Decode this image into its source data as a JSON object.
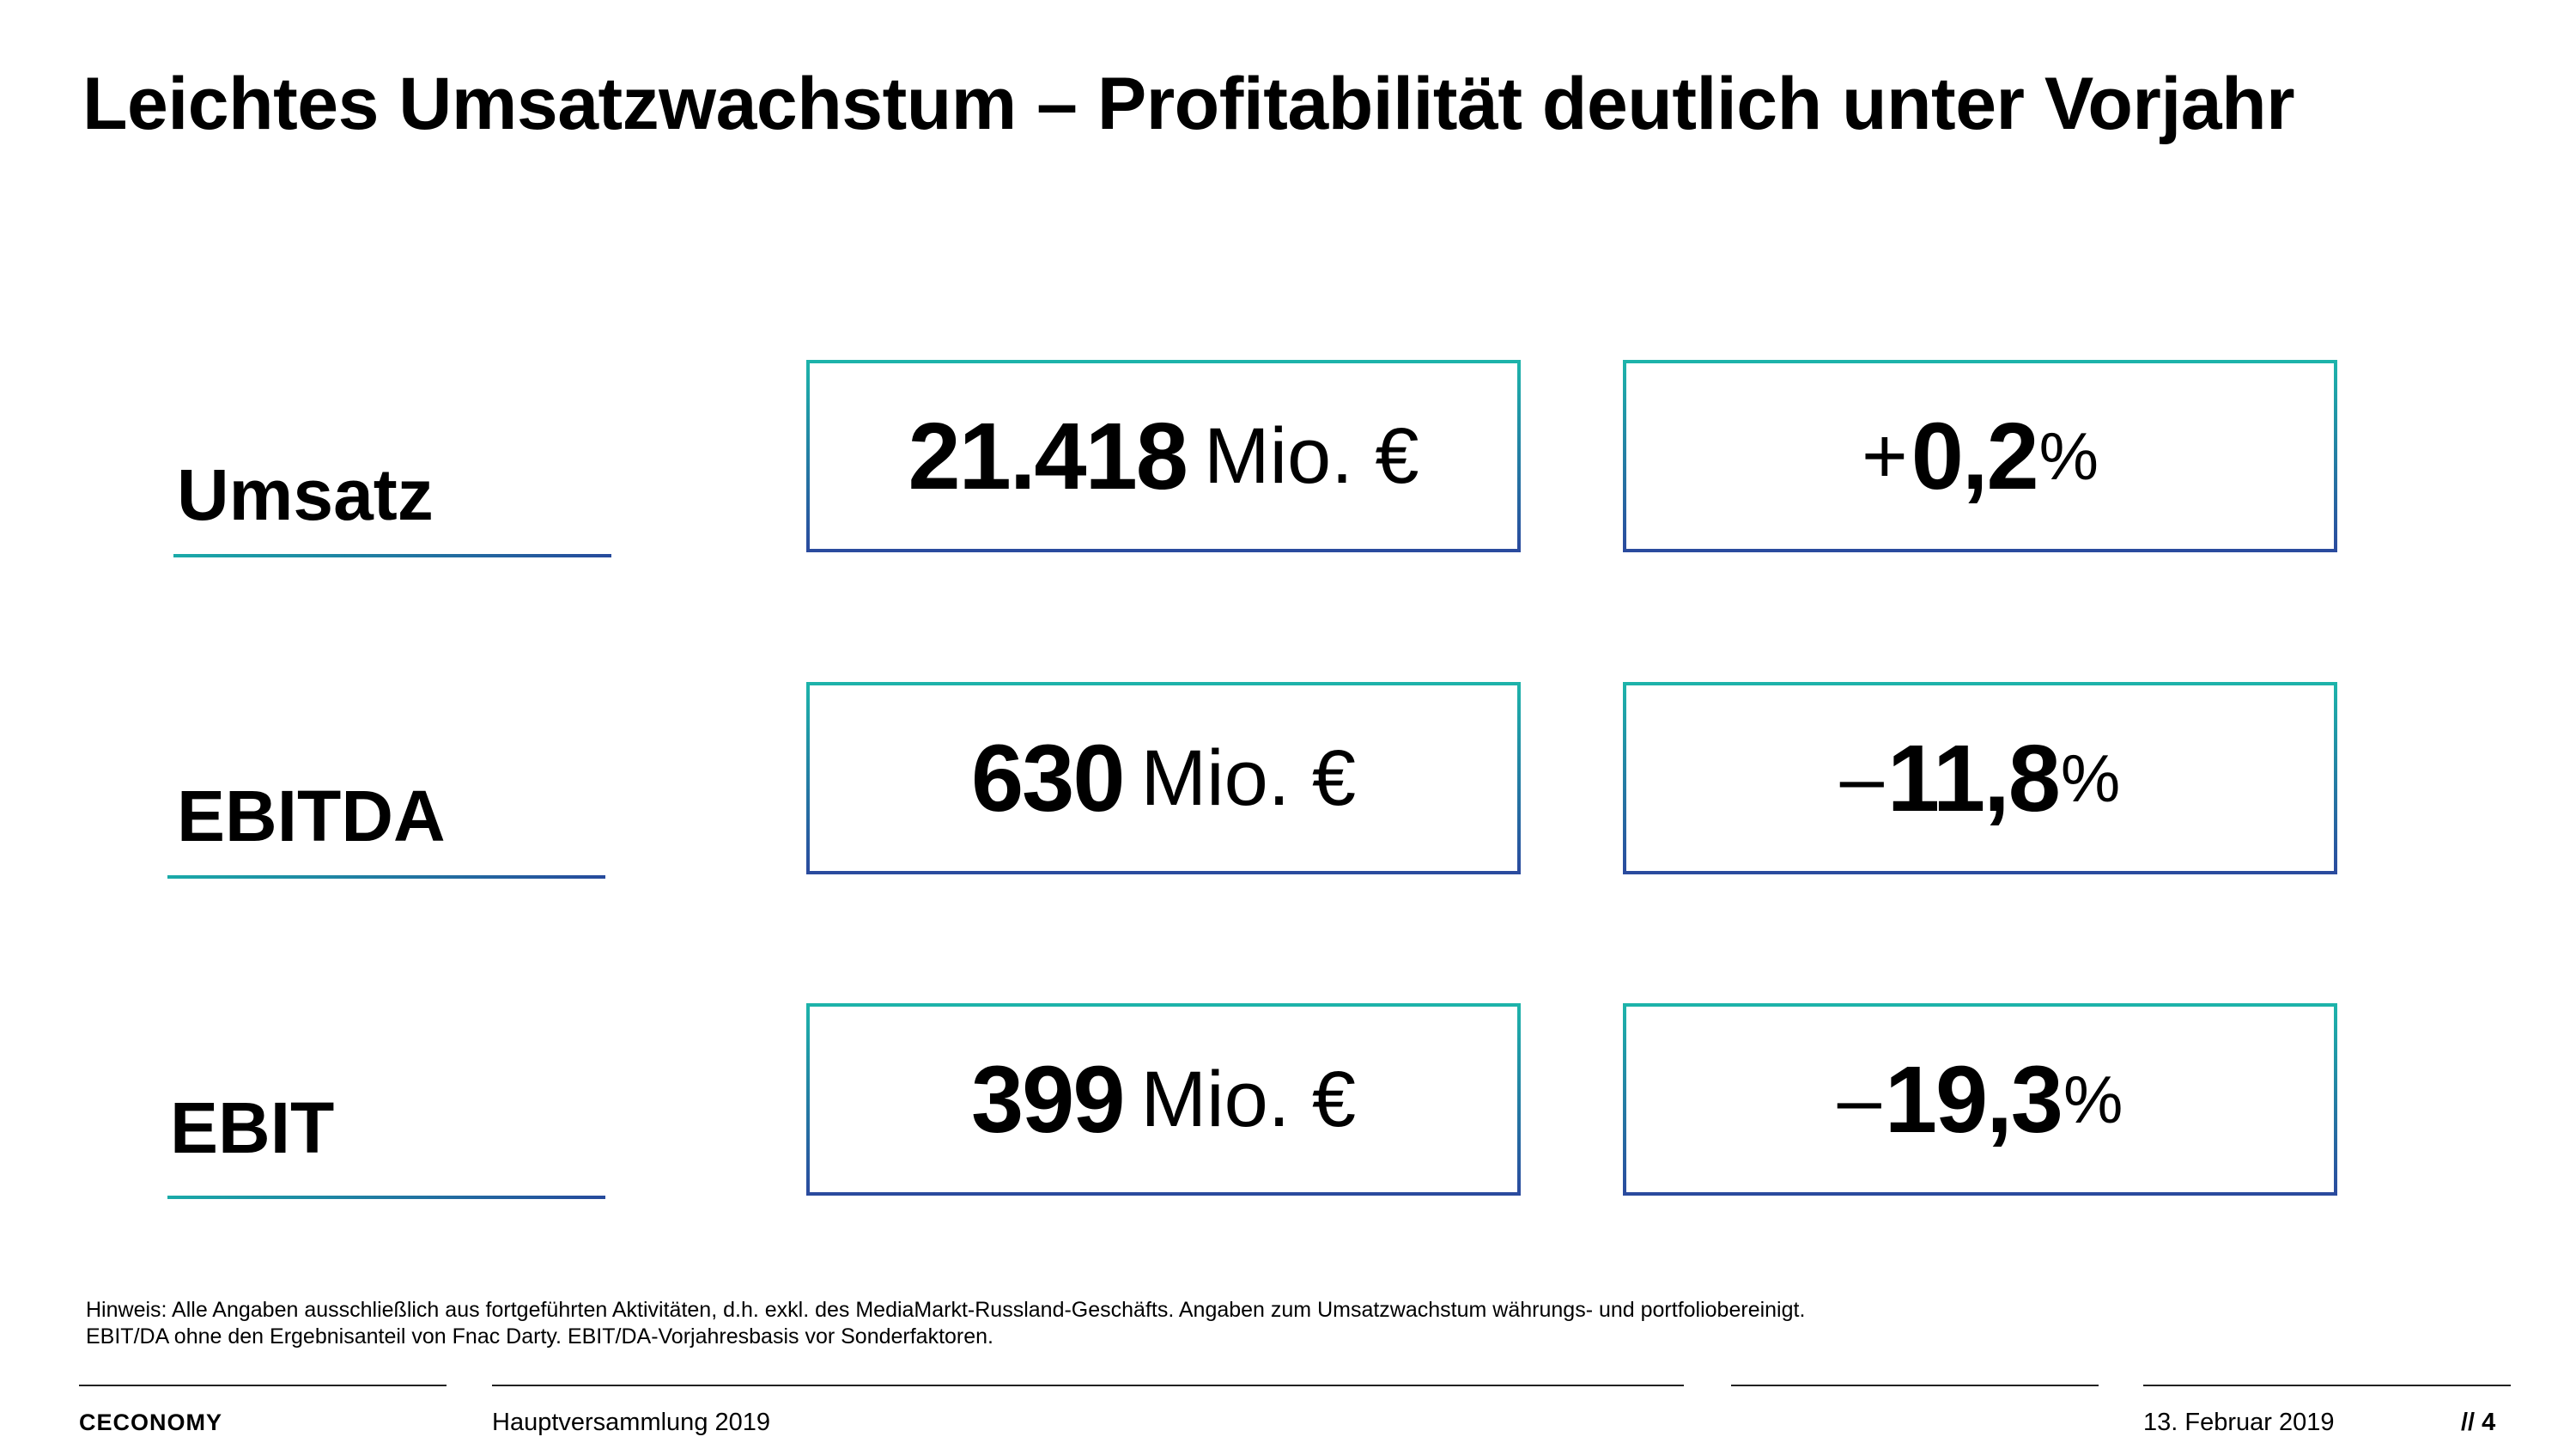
{
  "title": "Leichtes Umsatzwachstum – Profitabilität deutlich unter Vorjahr",
  "rows": [
    {
      "label": "Umsatz",
      "value": "21.418",
      "unit": "Mio. €",
      "change_sign": "+",
      "change_value": "0,2",
      "change_unit": "%"
    },
    {
      "label": "EBITDA",
      "value": "630",
      "unit": "Mio. €",
      "change_sign": "–",
      "change_value": "11,8",
      "change_unit": "%"
    },
    {
      "label": "EBIT",
      "value": "399",
      "unit": "Mio. €",
      "change_sign": "–",
      "change_value": "19,3",
      "change_unit": "%"
    }
  ],
  "note": {
    "line1": "Hinweis: Alle Angaben ausschließlich aus fortgeführten Aktivitäten, d.h. exkl. des MediaMarkt-Russland-Geschäfts. Angaben zum Umsatzwachstum währungs- und portfoliobereinigt.",
    "line2": "EBIT/DA ohne den Ergebnisanteil von Fnac Darty. EBIT/DA-Vorjahresbasis vor Sonderfaktoren."
  },
  "footer": {
    "logo": "CECONOMY",
    "event": "Hauptversammlung 2019",
    "date": "13. Februar 2019",
    "page": "// 4"
  },
  "colors": {
    "accent_teal": "#1db3aa",
    "accent_blue": "#2a4b9e"
  }
}
